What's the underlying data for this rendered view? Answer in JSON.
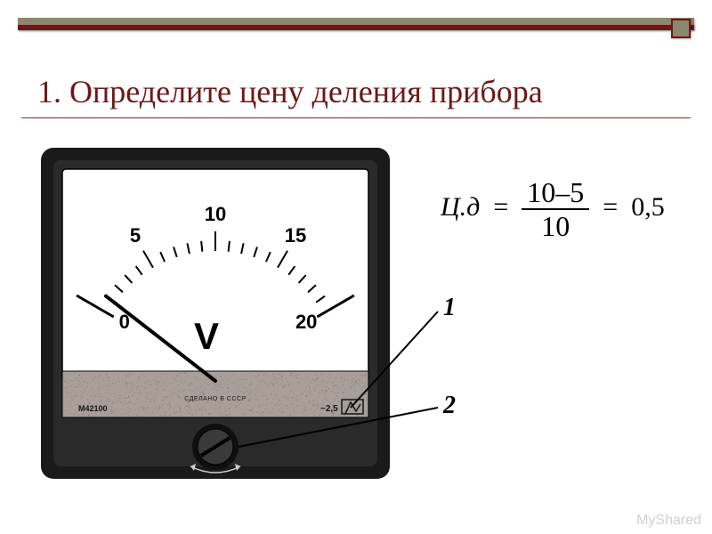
{
  "topbar": {
    "main_color": "#8a886f",
    "accent_color": "#6e1717",
    "box_bg": "#8a886f",
    "box_border": "#6e1717"
  },
  "title": "1. Определите цену деления прибора",
  "meter": {
    "frame_color": "#1a1a1a",
    "face_color": "#ffffff",
    "panel_color": "#a8a098",
    "texture_opacity": 0.18,
    "scale": {
      "min": 0,
      "max": 20,
      "major_ticks": [
        0,
        5,
        10,
        15,
        20
      ],
      "minor_per_major": 5,
      "angle_start_deg": 210,
      "angle_end_deg": 330,
      "radius": 140,
      "tick_major_len": 22,
      "tick_medium_len": 16,
      "tick_minor_len": 12,
      "tick_width": 2,
      "label_fontsize": 22,
      "label_fontweight": "bold",
      "end_tick_extra_len": 18
    },
    "unit_label": "V",
    "unit_fontsize": 42,
    "needle": {
      "value": 1.0,
      "width": 4,
      "color": "#000000"
    },
    "model_label": "М42100",
    "made_in_label": "СДЕЛАНО  В  СССР",
    "made_in_fontsize": 7,
    "class_label": "~2,5",
    "knob_radius": 20
  },
  "formula": {
    "lhs": "Ц.д",
    "numerator": "10–5",
    "denominator": "10",
    "rhs": "0,5"
  },
  "callouts": {
    "c1": "1",
    "c2": "2"
  },
  "watermark": "MyShared"
}
